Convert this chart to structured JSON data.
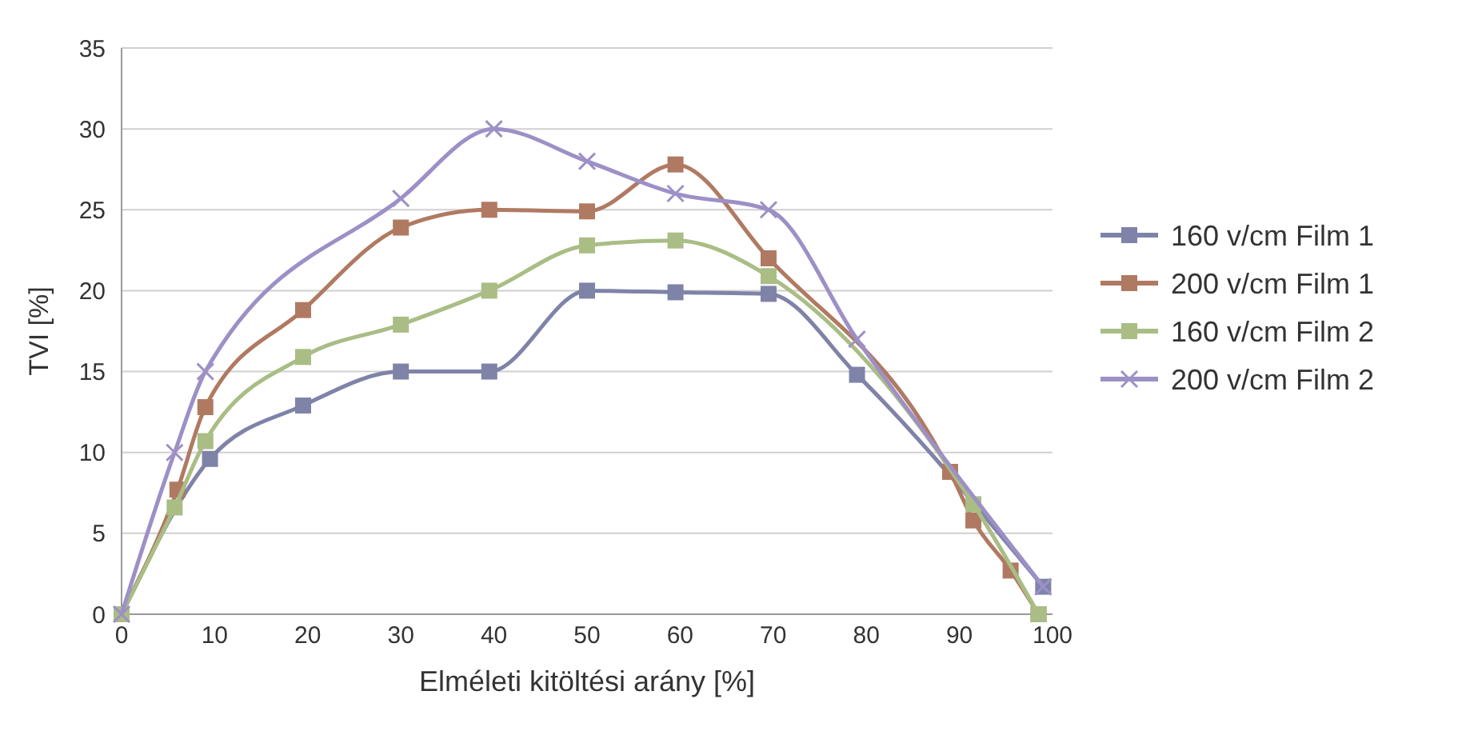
{
  "chart_data": {
    "type": "line",
    "xlabel": "Elméleti kitöltési arány [%]",
    "ylabel": "TVI [%]",
    "xlim": [
      0,
      100
    ],
    "xticks": [
      0,
      10,
      20,
      30,
      40,
      50,
      60,
      70,
      80,
      90,
      100
    ],
    "ylim": [
      0,
      35
    ],
    "yticks": [
      0,
      5,
      10,
      15,
      20,
      25,
      30,
      35
    ],
    "grid": "y",
    "legend": "right",
    "series": [
      {
        "name": "160 v/cm Film 1",
        "color": "#8083a8",
        "marker": "square",
        "x": [
          0,
          9.5,
          19.5,
          30,
          39.5,
          50,
          59.5,
          69.5,
          79,
          99
        ],
        "values": [
          0,
          9.6,
          12.9,
          15,
          15,
          20,
          19.9,
          19.8,
          14.8,
          1.7
        ]
      },
      {
        "name": "200 v/cm Film 1",
        "color": "#b07a62",
        "marker": "square",
        "x": [
          0,
          6,
          9,
          19.5,
          30,
          39.5,
          50,
          59.5,
          69.5,
          89,
          91.5,
          95.5,
          98.5
        ],
        "values": [
          0,
          7.7,
          12.8,
          18.8,
          23.9,
          25,
          24.9,
          27.8,
          22,
          8.8,
          5.8,
          2.7,
          0
        ]
      },
      {
        "name": "160 v/cm Film 2",
        "color": "#a9bd85",
        "marker": "square",
        "x": [
          0,
          5.7,
          9,
          19.5,
          30,
          39.5,
          50,
          59.5,
          69.5,
          91.5,
          98.5
        ],
        "values": [
          0,
          6.6,
          10.7,
          15.9,
          17.9,
          20,
          22.8,
          23.1,
          20.9,
          6.8,
          0
        ]
      },
      {
        "name": "200 v/cm Film 2",
        "color": "#9d90c6",
        "marker": "cross",
        "x": [
          0,
          5.7,
          9,
          30,
          40,
          50,
          59.5,
          69.5,
          79,
          99
        ],
        "values": [
          0,
          10,
          15,
          25.7,
          30,
          28,
          26,
          25,
          17,
          1.7
        ]
      }
    ]
  }
}
